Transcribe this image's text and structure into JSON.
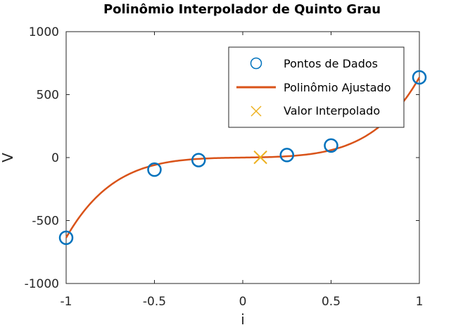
{
  "chart_data": {
    "type": "line",
    "title": "Polinômio Interpolador de Quinto Grau",
    "xlabel": "i",
    "ylabel": "V",
    "xlim": [
      -1,
      1
    ],
    "ylim": [
      -1000,
      1000
    ],
    "xticks": [
      -1,
      -0.5,
      0,
      0.5,
      1
    ],
    "xtick_labels": [
      "-1",
      "-0.5",
      "0",
      "0.5",
      "1"
    ],
    "yticks": [
      -1000,
      -500,
      0,
      500,
      1000
    ],
    "ytick_labels": [
      "-1000",
      "-500",
      "0",
      "500",
      "1000"
    ],
    "grid": false,
    "legend_position": "top-right",
    "series": [
      {
        "name": "Pontos de Dados",
        "kind": "markers",
        "marker": "circle",
        "color": "#0072BD",
        "x": [
          -1,
          -0.5,
          -0.25,
          0.25,
          0.5,
          1
        ],
        "y": [
          -637,
          -96,
          -20,
          20,
          96,
          637
        ]
      },
      {
        "name": "Polinômio Ajustado",
        "kind": "line",
        "color": "#D95319",
        "coefficients": [
          0,
          20,
          0,
          320,
          0,
          297
        ]
      },
      {
        "name": "Valor Interpolado",
        "kind": "markers",
        "marker": "x",
        "color": "#EDB120",
        "x": [
          0.1
        ],
        "y": [
          2
        ]
      }
    ]
  }
}
